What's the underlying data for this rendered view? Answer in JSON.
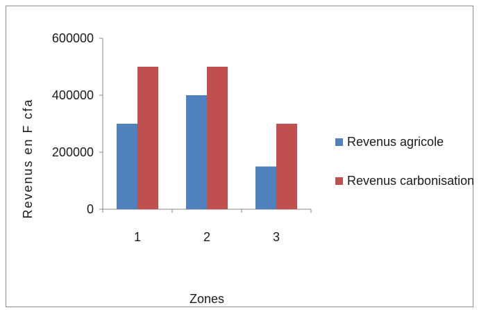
{
  "chart_data": {
    "type": "bar",
    "categories": [
      "1",
      "2",
      "3"
    ],
    "series": [
      {
        "name": "Revenus agricole",
        "values": [
          300000,
          400000,
          150000
        ],
        "color": "#4f81bd"
      },
      {
        "name": "Revenus carbonisation",
        "values": [
          500000,
          500000,
          300000
        ],
        "color": "#c0504d"
      }
    ],
    "title": "",
    "xlabel": "Zones",
    "ylabel": "Revenus en F cfa",
    "ylim": [
      0,
      600000
    ],
    "yticks": [
      0,
      200000,
      400000,
      600000
    ],
    "ytick_labels": [
      "0",
      "200000",
      "400000",
      "600000"
    ],
    "grid": false,
    "legend_position": "right",
    "axis_color": "#868686"
  }
}
